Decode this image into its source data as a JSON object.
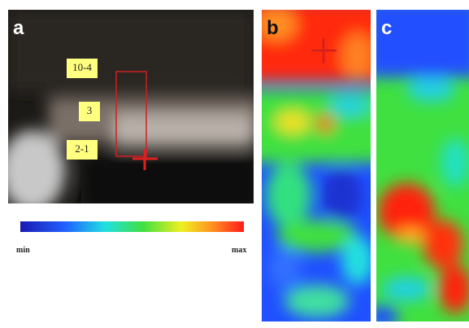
{
  "panels": {
    "a": {
      "label": "a",
      "regions": [
        "10-4",
        "3",
        "2-1"
      ],
      "colorbar": {
        "min": "min",
        "max": "max"
      }
    },
    "b": {
      "label": "b"
    },
    "c": {
      "label": "c"
    }
  }
}
